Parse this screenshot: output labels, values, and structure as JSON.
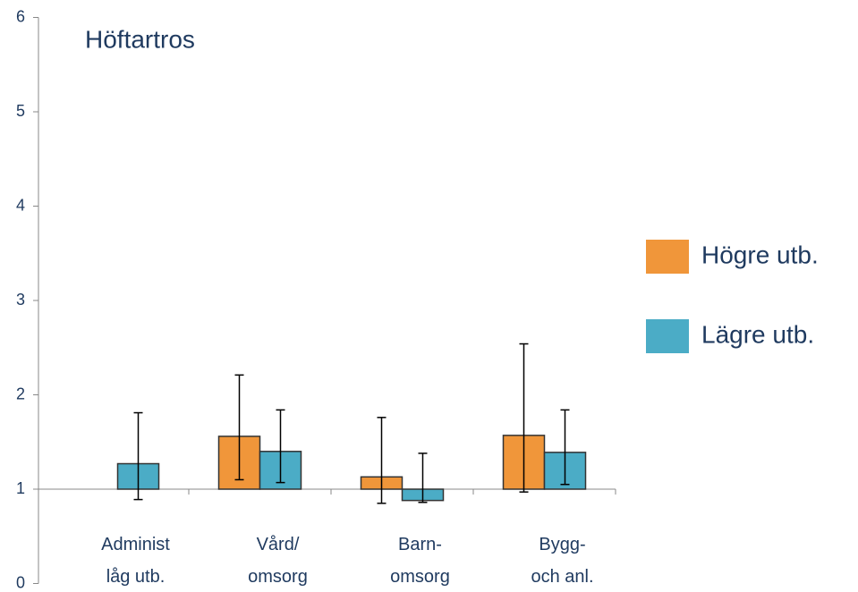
{
  "chart_data": {
    "type": "bar",
    "title": "Höftartros",
    "categories": [
      "Administ\nlåg utb.",
      "Vård/\nomsorg",
      "Barn-\nomsorg",
      "Bygg-\noch anl."
    ],
    "series": [
      {
        "name": "Högre utb.",
        "color": "#f0963a",
        "values": [
          null,
          1.56,
          1.13,
          1.57
        ],
        "ci_low": [
          null,
          1.1,
          0.85,
          0.97
        ],
        "ci_high": [
          null,
          2.21,
          1.76,
          2.54
        ]
      },
      {
        "name": "Lägre utb.",
        "color": "#4bacc6",
        "values": [
          1.27,
          1.4,
          0.88,
          1.39
        ],
        "ci_low": [
          0.89,
          1.07,
          0.86,
          1.05
        ],
        "ci_high": [
          1.81,
          1.84,
          1.38,
          1.84
        ]
      }
    ],
    "ylim": [
      0,
      6
    ],
    "yticks": [
      0,
      1,
      2,
      3,
      4,
      5,
      6
    ],
    "x_axis_at": 1,
    "legend": "right"
  }
}
